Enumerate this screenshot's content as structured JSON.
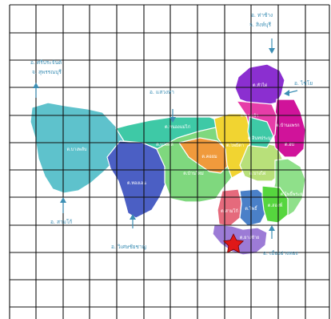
{
  "map": {
    "colors": {
      "sea_teal": "#5ec2cc",
      "blue": "#4b5fc4",
      "mint": "#3ec9a6",
      "green": "#7fd87e",
      "orange": "#f09a3c",
      "yellow": "#f1d431",
      "lime": "#b8e07a",
      "light_green": "#8fe08a",
      "purple": "#8b2fd0",
      "magenta": "#d0139a",
      "pink_magenta": "#e63da8",
      "salmon": "#e56a7c",
      "steel_blue": "#4a80c8",
      "bright_green": "#56d63e",
      "lavender": "#9c7bd6",
      "star": "#e01818",
      "label_blue": "#3d8fb5"
    },
    "external_labels": [
      {
        "id": "nw",
        "line1": "อ. ศรีประจันต์",
        "line2": "จ. สุพรรณบุรี",
        "arrow": "up"
      },
      {
        "id": "ne",
        "line1": "อ. ท่าช้าง",
        "line2": "จ. สิงห์บุรี",
        "arrow": "down"
      },
      {
        "id": "e",
        "line1": "อ. ไชโย",
        "arrow": "left"
      },
      {
        "id": "n",
        "line1": "อ. แสวงหา",
        "arrow": "down"
      },
      {
        "id": "sw",
        "line1": "อ. สามโก้",
        "arrow": "up"
      },
      {
        "id": "s",
        "line1": "อ. วิเศษชัยชาญ",
        "arrow": "up"
      },
      {
        "id": "se",
        "line1": "อ. เมืองอ่างทอง",
        "arrow": "up"
      }
    ],
    "subdistrict_labels": [
      "ต.บางพลับ",
      "ต.ทองเอน",
      "ต.หนองแม่ไก่",
      "ต.คอยม",
      "ต.บ้านใหม่",
      "ต.โพธิ์ตา",
      "ต.บางไผ่",
      "ต.โพธิ์พระยา",
      "ต.หัวไผ่",
      "ต.บ้านแพรก",
      "ต.อินทประมูล",
      "ต.สามโก้",
      "ต.โพธิ์",
      "ต.สองพี่",
      "ต.ยางซ้าย",
      "ต.บางเจ้า",
      "ต.อบ",
      "ต.บางพลี"
    ],
    "marker": "star-marker"
  }
}
